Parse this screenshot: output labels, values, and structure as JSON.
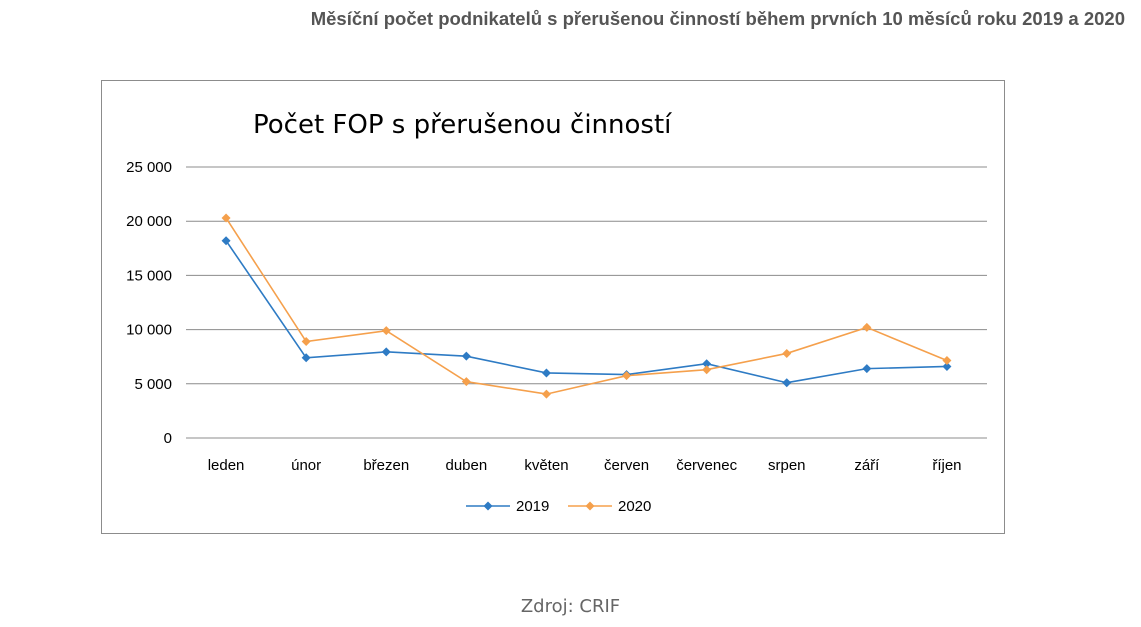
{
  "page": {
    "heading": "Měsíční počet podnikatelů s přerušenou činností během prvních 10 měsíců roku 2019 a 2020",
    "source": "Zdroj: CRIF"
  },
  "chart_data": {
    "type": "line",
    "title": "Počet FOP s přerušenou činností",
    "xlabel": "",
    "ylabel": "",
    "categories": [
      "leden",
      "únor",
      "březen",
      "duben",
      "květen",
      "červen",
      "červenec",
      "srpen",
      "září",
      "říjen"
    ],
    "ylim": [
      0,
      25000
    ],
    "yticks": [
      0,
      5000,
      10000,
      15000,
      20000,
      25000
    ],
    "ytick_labels": [
      "0",
      "5 000",
      "10 000",
      "15 000",
      "20 000",
      "25 000"
    ],
    "grid": true,
    "legend": "bottom",
    "series": [
      {
        "name": "2019",
        "color": "#2e7bc4",
        "marker": "diamond",
        "values": [
          18200,
          7400,
          7950,
          7550,
          6000,
          5850,
          6850,
          5100,
          6400,
          6600
        ]
      },
      {
        "name": "2020",
        "color": "#f5a04c",
        "marker": "diamond",
        "values": [
          20300,
          8900,
          9900,
          5200,
          4050,
          5750,
          6300,
          7800,
          10200,
          7150
        ]
      }
    ]
  }
}
